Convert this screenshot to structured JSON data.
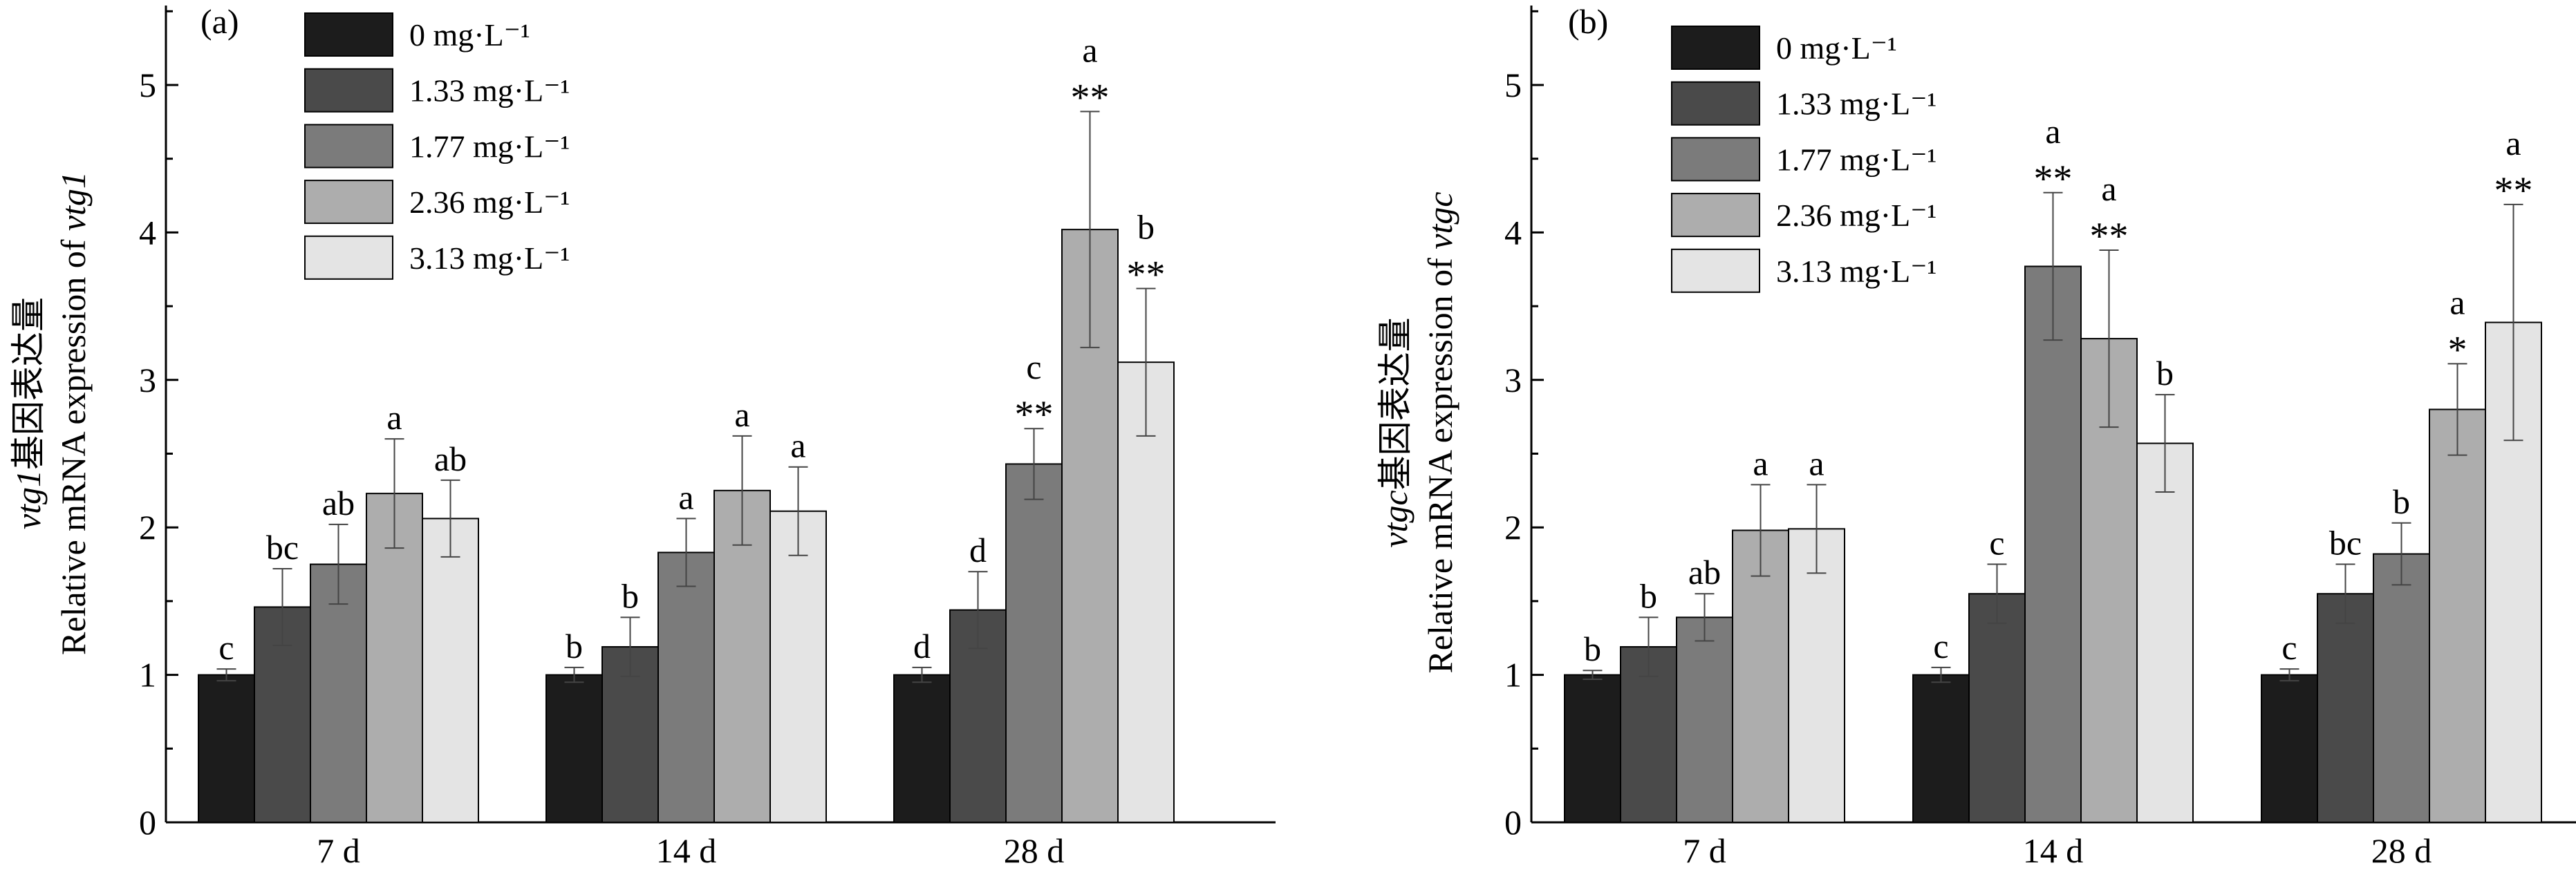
{
  "legend": [
    {
      "label": "0 mg·L⁻¹",
      "color": "#1c1c1c"
    },
    {
      "label": "1.33 mg·L⁻¹",
      "color": "#4a4a4a"
    },
    {
      "label": "1.77 mg·L⁻¹",
      "color": "#7b7b7b"
    },
    {
      "label": "2.36 mg·L⁻¹",
      "color": "#adadad"
    },
    {
      "label": "3.13 mg·L⁻¹",
      "color": "#e4e4e4"
    }
  ],
  "chart_data": [
    {
      "type": "bar",
      "panel": "(a)",
      "ylabel_line1_italic": "vtg1",
      "ylabel_line1_text": "基因表达量",
      "ylabel_line2_text": "Relative mRNA expression of ",
      "ylabel_line2_italic": "vtg1",
      "ylim": [
        0,
        5.5
      ],
      "yticks": [
        0,
        1,
        2,
        3,
        4,
        5
      ],
      "categories": [
        "7 d",
        "14 d",
        "28 d"
      ],
      "series": [
        {
          "name": "0 mg·L⁻¹",
          "values": [
            1.0,
            1.0,
            1.0
          ],
          "errors": [
            0.04,
            0.05,
            0.05
          ],
          "letters": [
            "c",
            "b",
            "d"
          ],
          "stars": [
            "",
            "",
            ""
          ]
        },
        {
          "name": "1.33 mg·L⁻¹",
          "values": [
            1.46,
            1.19,
            1.44
          ],
          "errors": [
            0.26,
            0.2,
            0.26
          ],
          "letters": [
            "bc",
            "b",
            "d"
          ],
          "stars": [
            "",
            "",
            ""
          ]
        },
        {
          "name": "1.77 mg·L⁻¹",
          "values": [
            1.75,
            1.83,
            2.43
          ],
          "errors": [
            0.27,
            0.23,
            0.24
          ],
          "letters": [
            "ab",
            "a",
            "c"
          ],
          "stars": [
            "",
            "",
            "**"
          ]
        },
        {
          "name": "2.36 mg·L⁻¹",
          "values": [
            2.23,
            2.25,
            4.02
          ],
          "errors": [
            0.37,
            0.37,
            0.8
          ],
          "letters": [
            "a",
            "a",
            "a"
          ],
          "stars": [
            "",
            "",
            "**"
          ]
        },
        {
          "name": "3.13 mg·L⁻¹",
          "values": [
            2.06,
            2.11,
            3.12
          ],
          "errors": [
            0.26,
            0.3,
            0.5
          ],
          "letters": [
            "ab",
            "a",
            "b"
          ],
          "stars": [
            "",
            "",
            "**"
          ]
        }
      ]
    },
    {
      "type": "bar",
      "panel": "(b)",
      "ylabel_line1_italic": "vtgc",
      "ylabel_line1_text": "基因表达量",
      "ylabel_line2_text": "Relative mRNA expression of ",
      "ylabel_line2_italic": "vtgc",
      "ylim": [
        0,
        5.5
      ],
      "yticks": [
        0,
        1,
        2,
        3,
        4,
        5
      ],
      "categories": [
        "7 d",
        "14 d",
        "28 d"
      ],
      "series": [
        {
          "name": "0 mg·L⁻¹",
          "values": [
            1.0,
            1.0,
            1.0
          ],
          "errors": [
            0.03,
            0.05,
            0.04
          ],
          "letters": [
            "b",
            "c",
            "c"
          ],
          "stars": [
            "",
            "",
            ""
          ]
        },
        {
          "name": "1.33 mg·L⁻¹",
          "values": [
            1.19,
            1.55,
            1.55
          ],
          "errors": [
            0.2,
            0.2,
            0.2
          ],
          "letters": [
            "b",
            "c",
            "bc"
          ],
          "stars": [
            "",
            "",
            ""
          ]
        },
        {
          "name": "1.77 mg·L⁻¹",
          "values": [
            1.39,
            3.77,
            1.82
          ],
          "errors": [
            0.16,
            0.5,
            0.21
          ],
          "letters": [
            "ab",
            "a",
            "b"
          ],
          "stars": [
            "",
            "**",
            ""
          ]
        },
        {
          "name": "2.36 mg·L⁻¹",
          "values": [
            1.98,
            3.28,
            2.8
          ],
          "errors": [
            0.31,
            0.6,
            0.31
          ],
          "letters": [
            "a",
            "a",
            "a"
          ],
          "stars": [
            "",
            "**",
            "*"
          ]
        },
        {
          "name": "3.13 mg·L⁻¹",
          "values": [
            1.99,
            2.57,
            3.39
          ],
          "errors": [
            0.3,
            0.33,
            0.8
          ],
          "letters": [
            "a",
            "b",
            "a"
          ],
          "stars": [
            "",
            "",
            "**"
          ]
        }
      ]
    }
  ]
}
